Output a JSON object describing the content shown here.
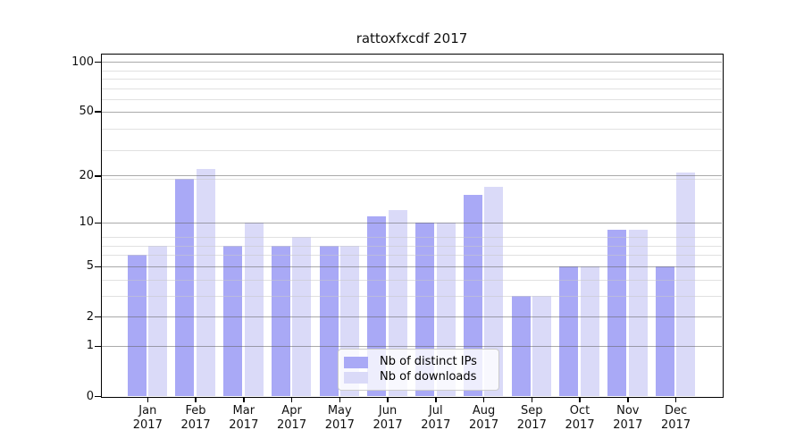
{
  "chart_data": {
    "type": "bar",
    "title": "rattoxfxcdf 2017",
    "categories": [
      "Jan",
      "Feb",
      "Mar",
      "Apr",
      "May",
      "Jun",
      "Jul",
      "Aug",
      "Sep",
      "Oct",
      "Nov",
      "Dec"
    ],
    "year_label": "2017",
    "series": [
      {
        "name": "Nb of distinct IPs",
        "color": "#a9a9f6",
        "values": [
          6,
          19,
          7,
          7,
          7,
          11,
          10,
          15,
          3,
          5,
          9,
          5
        ]
      },
      {
        "name": "Nb of downloads",
        "color": "#dadaf8",
        "values": [
          7,
          22,
          10,
          8,
          7,
          12,
          10,
          17,
          3,
          5,
          9,
          21
        ]
      }
    ],
    "yscale": "log10(value+1)",
    "ylim": [
      0,
      114
    ],
    "yticks": [
      100,
      50,
      20,
      10,
      5,
      2,
      1,
      0
    ],
    "minor_gridlines_at_value_plus_1": [
      4,
      5,
      7,
      8,
      9,
      20,
      30,
      40,
      60,
      70,
      80,
      90
    ],
    "grid": "horizontal",
    "legend_position": "inside-bottom-center",
    "colors": {
      "major_grid": "#b0b0b0",
      "minor_grid": "#e3e3e3",
      "axis": "#000000",
      "background": "#ffffff"
    }
  }
}
